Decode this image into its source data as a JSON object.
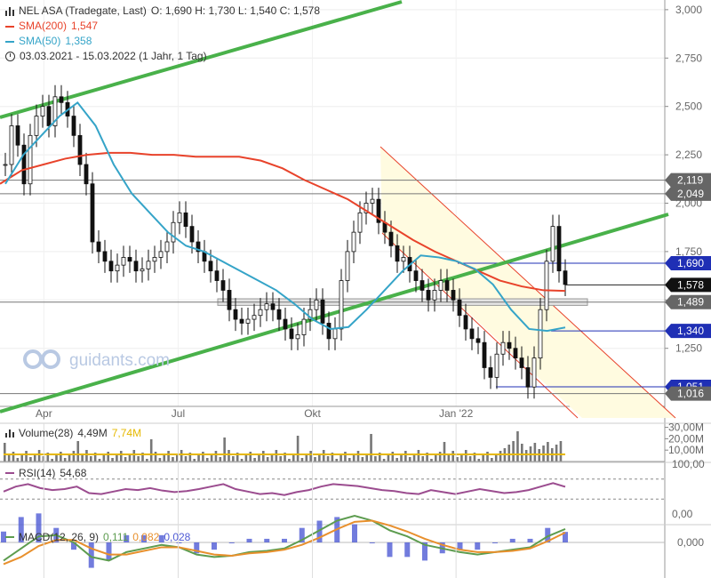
{
  "header": {
    "instrument": "NEL ASA (Tradegate, Last)",
    "ohlc": "O: 1,690  H: 1,730  L: 1,540  C: 1,578",
    "sma200_label": "SMA(200)",
    "sma200_value": "1,547",
    "sma50_label": "SMA(50)",
    "sma50_value": "1,358",
    "period": "03.03.2021 - 15.03.2022  (1 Jahr, 1 Tag)"
  },
  "watermark": "guidants.com",
  "colors": {
    "sma200": "#e8432b",
    "sma50": "#35a4c8",
    "trend": "#49b14a",
    "channel": "#e8432b",
    "price_tag": "#1f2fb5",
    "volume_avg": "#e6b800",
    "rsi": "#9b4c8f",
    "macd": "#5d9c4f",
    "macd_signal": "#e8902d",
    "macd_hist": "#4f5bd5"
  },
  "chart_data": [
    {
      "type": "candlestick",
      "title": "NEL ASA (Tradegate, Last)",
      "ohlc_last": {
        "open": 1.69,
        "high": 1.73,
        "low": 1.54,
        "close": 1.578
      },
      "x_ticks": [
        "Apr",
        "Jul",
        "Okt",
        "Jan '22"
      ],
      "y_ticks": [
        "3,000",
        "2,750",
        "2,500",
        "2,250",
        "2,000",
        "1,750",
        "1,500",
        "1,250"
      ],
      "ylim": [
        0.95,
        3.05
      ],
      "price_levels": [
        {
          "label": "2,119",
          "value": 2.119,
          "style": "gray"
        },
        {
          "label": "2,049",
          "value": 2.049,
          "style": "gray"
        },
        {
          "label": "1,690",
          "value": 1.69,
          "style": "blue"
        },
        {
          "label": "1,578",
          "value": 1.578,
          "style": "black"
        },
        {
          "label": "1,489",
          "value": 1.489,
          "style": "gray"
        },
        {
          "label": "1,340",
          "value": 1.34,
          "style": "blue"
        },
        {
          "label": "1,051",
          "value": 1.051,
          "style": "blue"
        },
        {
          "label": "1,016",
          "value": 1.016,
          "style": "gray"
        }
      ],
      "series": [
        {
          "name": "NEL ASA",
          "values": [
            2.2,
            2.4,
            2.3,
            2.1,
            2.35,
            2.45,
            2.5,
            2.4,
            2.55,
            2.52,
            2.45,
            2.35,
            2.2,
            2.1,
            1.8,
            1.75,
            1.7,
            1.65,
            1.68,
            1.72,
            1.7,
            1.65,
            1.66,
            1.7,
            1.72,
            1.75,
            1.8,
            1.9,
            1.95,
            1.88,
            1.8,
            1.75,
            1.7,
            1.65,
            1.6,
            1.55,
            1.45,
            1.4,
            1.38,
            1.4,
            1.42,
            1.45,
            1.48,
            1.45,
            1.4,
            1.35,
            1.3,
            1.32,
            1.4,
            1.45,
            1.5,
            1.38,
            1.3,
            1.35,
            1.6,
            1.75,
            1.85,
            1.95,
            2.0,
            2.02,
            1.9,
            1.85,
            1.78,
            1.7,
            1.72,
            1.65,
            1.6,
            1.55,
            1.5,
            1.55,
            1.6,
            1.55,
            1.5,
            1.42,
            1.35,
            1.3,
            1.28,
            1.15,
            1.1,
            1.22,
            1.28,
            1.25,
            1.2,
            1.15,
            1.05,
            1.2,
            1.45,
            1.7,
            1.88,
            1.65,
            1.58
          ]
        },
        {
          "name": "SMA(200)",
          "values": [
            2.1,
            2.17,
            2.2,
            2.23,
            2.25,
            2.26,
            2.26,
            2.25,
            2.25,
            2.24,
            2.24,
            2.24,
            2.22,
            2.18,
            2.12,
            2.07,
            2.02,
            1.95,
            1.88,
            1.81,
            1.75,
            1.7,
            1.65,
            1.6,
            1.57,
            1.55,
            1.547
          ]
        },
        {
          "name": "SMA(50)",
          "values": [
            2.1,
            2.25,
            2.35,
            2.45,
            2.52,
            2.4,
            2.2,
            2.05,
            1.95,
            1.85,
            1.78,
            1.75,
            1.7,
            1.65,
            1.6,
            1.55,
            1.48,
            1.4,
            1.35,
            1.36,
            1.45,
            1.55,
            1.65,
            1.73,
            1.72,
            1.7,
            1.66,
            1.58,
            1.45,
            1.35,
            1.34,
            1.358
          ]
        }
      ]
    },
    {
      "type": "bar",
      "title": "Volume(28)",
      "label": "Volume(28)",
      "value_a": "4,49M",
      "value_b": "7,74M",
      "y_ticks": [
        "30,00M",
        "20,00M",
        "10,00M"
      ],
      "ylim": [
        0,
        32
      ]
    },
    {
      "type": "line",
      "title": "RSI(14)",
      "label": "RSI(14)",
      "value": "54,68",
      "y_ticks": [
        "100,00",
        "0,00"
      ],
      "ylim": [
        0,
        100
      ],
      "series": [
        {
          "name": "RSI(14)",
          "values": [
            45,
            55,
            60,
            52,
            48,
            50,
            55,
            42,
            40,
            45,
            50,
            48,
            52,
            47,
            44,
            46,
            50,
            55,
            60,
            50,
            45,
            40,
            42,
            38,
            44,
            48,
            55,
            60,
            58,
            56,
            52,
            48,
            46,
            42,
            40,
            48,
            44,
            40,
            45,
            50,
            46,
            42,
            44,
            48,
            55,
            62,
            54.68
          ]
        }
      ]
    },
    {
      "type": "line",
      "title": "MACD(12, 26, 9)",
      "label": "MACD(12, 26, 9)",
      "values": [
        "0,111",
        "0,082",
        "0,028"
      ],
      "y_ticks": [
        "0,000"
      ],
      "ylim": [
        -0.25,
        0.25
      ],
      "series": [
        {
          "name": "MACD",
          "values": [
            -0.15,
            -0.05,
            0.05,
            0.06,
            0.0,
            -0.12,
            -0.15,
            -0.08,
            -0.05,
            -0.02,
            -0.04,
            -0.1,
            -0.12,
            -0.11,
            -0.08,
            -0.07,
            -0.05,
            0.02,
            0.1,
            0.18,
            0.22,
            0.18,
            0.1,
            0.05,
            -0.02,
            -0.05,
            -0.08,
            -0.1,
            -0.08,
            -0.06,
            -0.04,
            0.05,
            0.111
          ]
        },
        {
          "name": "Signal",
          "values": [
            -0.18,
            -0.12,
            -0.03,
            0.02,
            0.02,
            -0.05,
            -0.1,
            -0.1,
            -0.07,
            -0.04,
            -0.04,
            -0.07,
            -0.1,
            -0.11,
            -0.09,
            -0.08,
            -0.06,
            -0.02,
            0.04,
            0.11,
            0.17,
            0.18,
            0.14,
            0.09,
            0.03,
            -0.02,
            -0.06,
            -0.08,
            -0.08,
            -0.07,
            -0.05,
            0.01,
            0.082
          ]
        }
      ]
    }
  ]
}
